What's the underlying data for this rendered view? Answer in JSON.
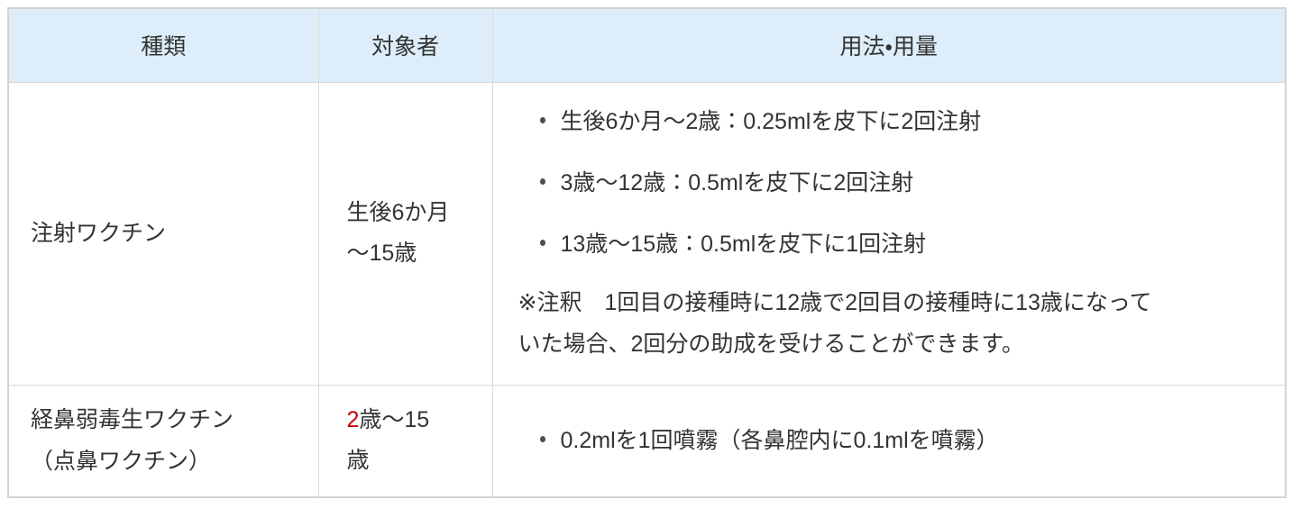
{
  "colors": {
    "header_bg": "#ddeefa",
    "border": "#d9d9d9",
    "border_outer": "#d2d2d2",
    "text": "#333333",
    "highlight_red": "#c00000",
    "bullet": "#4d4d4d"
  },
  "table": {
    "headers": [
      "種類",
      "対象者",
      "用法・用量"
    ],
    "rows": [
      {
        "type_lines": [
          "注射ワクチン"
        ],
        "target_lines": [
          "生後6か月",
          "～15歳"
        ],
        "bullets": [
          "生後6か月～2歳：0.25mlを皮下に2回注射",
          "3歳～12歳：0.5mlを皮下に2回注射",
          "13歳～15歳：0.5mlを皮下に1回注射"
        ],
        "note_lines": [
          "※注釈　1回目の接種時に12歳で2回目の接種時に13歳になって",
          "いた場合、2回分の助成を受けることができます。"
        ]
      },
      {
        "type_lines": [
          "経鼻弱毒生ワクチン",
          "（点鼻ワクチン）"
        ],
        "target_red": "2",
        "target_line1_rest": "歳～15",
        "target_line2": "歳",
        "bullets": [
          "0.2mlを1回噴霧（各鼻腔内に0.1mlを噴霧）"
        ]
      }
    ]
  }
}
